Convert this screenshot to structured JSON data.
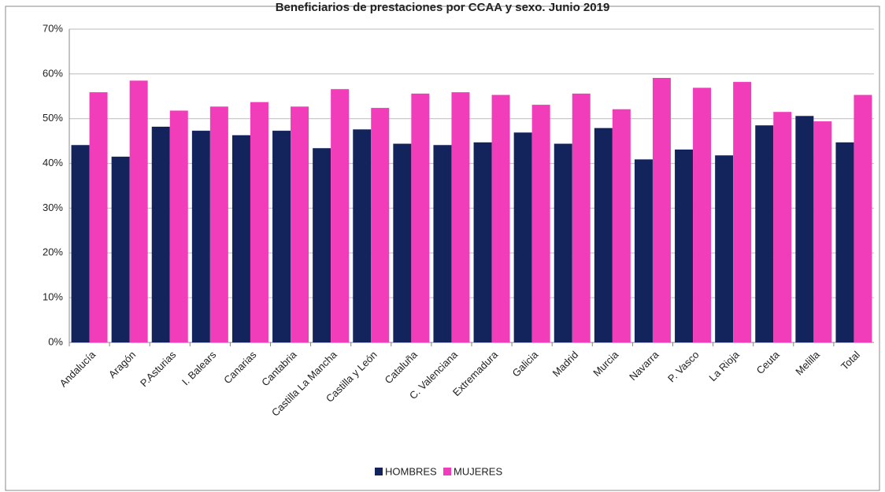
{
  "chart_data": {
    "type": "bar",
    "title": "Beneficiarios de prestaciones por CCAA y sexo. Junio 2019",
    "categories": [
      "Andalucía",
      "Aragón",
      "P.Asturias",
      "I. Balears",
      "Canarias",
      "Cantabria",
      "Castilla La Mancha",
      "Castilla y León",
      "Cataluña",
      "C. Valenciana",
      "Extremadura",
      "Galicia",
      "Madrid",
      "Murcia",
      "Navarra",
      "P. Vasco",
      "La Rioja",
      "Ceuta",
      "Melilla",
      "Total"
    ],
    "series": [
      {
        "name": "HOMBRES",
        "color": "#13245c",
        "values": [
          44.1,
          41.5,
          48.2,
          47.3,
          46.3,
          47.3,
          43.4,
          47.6,
          44.4,
          44.1,
          44.7,
          46.9,
          44.4,
          47.9,
          40.9,
          43.1,
          41.8,
          48.5,
          50.6,
          44.7
        ]
      },
      {
        "name": "MUJERES",
        "color": "#f23dbb",
        "values": [
          55.9,
          58.5,
          51.8,
          52.7,
          53.7,
          52.7,
          56.6,
          52.4,
          55.6,
          55.9,
          55.3,
          53.1,
          55.6,
          52.1,
          59.1,
          56.9,
          58.2,
          51.5,
          49.4,
          55.3
        ]
      }
    ],
    "ylim": [
      0,
      70
    ],
    "yticks": [
      {
        "value": 0,
        "label": "0%"
      },
      {
        "value": 10,
        "label": "10%"
      },
      {
        "value": 20,
        "label": "20%"
      },
      {
        "value": 30,
        "label": "30%"
      },
      {
        "value": 40,
        "label": "40%"
      },
      {
        "value": 50,
        "label": "50%"
      },
      {
        "value": 60,
        "label": "60%"
      },
      {
        "value": 70,
        "label": "70%"
      }
    ],
    "grid": true,
    "legend": "bottom"
  }
}
